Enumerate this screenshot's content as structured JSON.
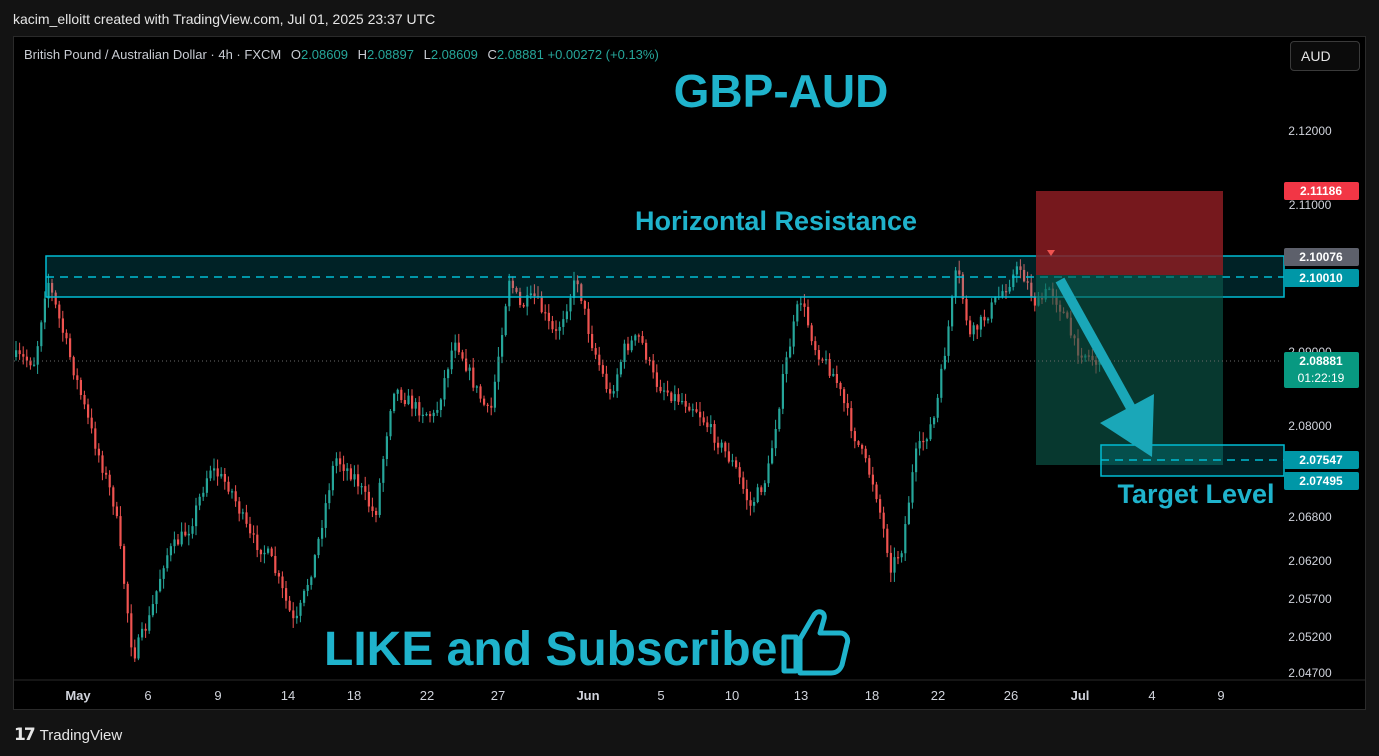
{
  "header": {
    "credit": "kacim_elloitt created with TradingView.com, Jul 01, 2025 23:37 UTC"
  },
  "symbol": {
    "name": "British Pound / Australian Dollar · 4h · FXCM",
    "open_label": "O",
    "open": "2.08609",
    "high_label": "H",
    "high": "2.08897",
    "low_label": "L",
    "low": "2.08609",
    "close_label": "C",
    "close": "2.08881",
    "change": "+0.00272 (+0.13%)"
  },
  "currency_button": "AUD",
  "footer": {
    "brand": "TradingView"
  },
  "chart_data": {
    "type": "candlestick",
    "title": "GBP-AUD",
    "annotations": {
      "resistance_label": "Horizontal Resistance",
      "target_label": "Target Level",
      "cta": "LIKE and Subscribe",
      "cta_icon": "thumbs-up-icon"
    },
    "y_ticks": [
      "2.12000",
      "2.11000",
      "2.09000",
      "2.08000",
      "2.06800",
      "2.06200",
      "2.05700",
      "2.05200",
      "2.04700"
    ],
    "x_ticks": [
      "May",
      "6",
      "9",
      "14",
      "18",
      "22",
      "27",
      "Jun",
      "5",
      "10",
      "13",
      "18",
      "22",
      "26",
      "Jul",
      "4",
      "9"
    ],
    "price_tags": [
      {
        "value": "2.11186",
        "role": "stop-loss",
        "color": "#f23645"
      },
      {
        "value": "2.10076",
        "role": "zone-top",
        "color": "#5d606b"
      },
      {
        "value": "2.10010",
        "role": "resistance",
        "color": "#0097a7"
      },
      {
        "value": "2.08881",
        "role": "last-price",
        "color": "#089981",
        "countdown": "01:22:19"
      },
      {
        "value": "2.07547",
        "role": "target",
        "color": "#0097a7"
      },
      {
        "value": "2.07495",
        "role": "target-low",
        "color": "#0097a7"
      }
    ],
    "resistance_zone": [
      2.0972,
      2.1011
    ],
    "target_zone": [
      2.0745,
      2.0775
    ],
    "colors": {
      "up": "#26a69a",
      "down": "#ef5350",
      "accent": "#00bcd4",
      "stop": "#8b1c22",
      "profit": "#0b5e4e"
    }
  }
}
